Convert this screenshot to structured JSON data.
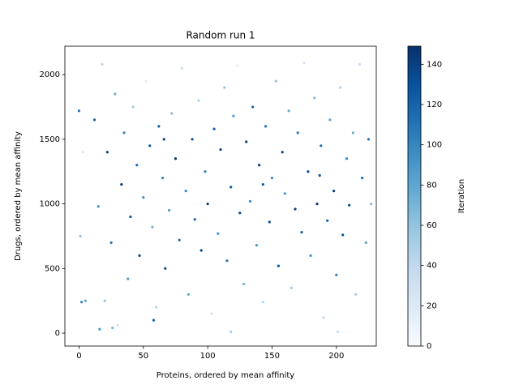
{
  "chart_data": {
    "type": "scatter",
    "title": "Random run 1",
    "x_label": "Proteins, ordered by mean affinity",
    "y_label": "Drugs, ordered by mean affinity",
    "colorbar_label": "Iteration",
    "colormap": "Blues",
    "xlim": [
      -11,
      231
    ],
    "ylim": [
      -100,
      2220
    ],
    "clim": [
      0,
      149
    ],
    "xticks": [
      0,
      50,
      100,
      150,
      200
    ],
    "yticks": [
      0,
      500,
      1000,
      1500,
      2000
    ],
    "cticks": [
      0,
      20,
      40,
      60,
      80,
      100,
      120,
      140
    ],
    "x": [
      12,
      15,
      18,
      20,
      22,
      25,
      28,
      30,
      33,
      35,
      38,
      40,
      42,
      45,
      47,
      50,
      52,
      55,
      57,
      60,
      62,
      65,
      67,
      70,
      72,
      75,
      78,
      80,
      83,
      85,
      88,
      90,
      93,
      95,
      98,
      100,
      103,
      105,
      108,
      110,
      113,
      115,
      118,
      120,
      123,
      125,
      128,
      130,
      133,
      135,
      138,
      140,
      143,
      145,
      148,
      150,
      153,
      155,
      158,
      160,
      163,
      165,
      168,
      170,
      173,
      175,
      178,
      180,
      183,
      185,
      188,
      190,
      193,
      195,
      198,
      200,
      203,
      205,
      208,
      210,
      213,
      215,
      218,
      220,
      223,
      225,
      227,
      0,
      1,
      2,
      5,
      3,
      16,
      26,
      58,
      118,
      201,
      66,
      143,
      187
    ],
    "values": [
      1650,
      980,
      2080,
      250,
      1400,
      700,
      1850,
      60,
      1150,
      1550,
      420,
      900,
      1750,
      1300,
      600,
      1050,
      1950,
      1450,
      820,
      200,
      1600,
      1200,
      500,
      950,
      1700,
      1350,
      720,
      2050,
      1100,
      300,
      1500,
      880,
      1800,
      640,
      1250,
      1000,
      150,
      1580,
      770,
      1420,
      1900,
      560,
      1130,
      1680,
      2070,
      930,
      380,
      1480,
      1020,
      1750,
      680,
      1300,
      240,
      1600,
      860,
      1200,
      1950,
      520,
      1400,
      1080,
      1720,
      350,
      960,
      1550,
      780,
      2090,
      1250,
      600,
      1820,
      1000,
      1450,
      120,
      870,
      1650,
      1100,
      450,
      1900,
      760,
      1350,
      990,
      1550,
      300,
      2080,
      1200,
      700,
      1500,
      1000,
      1720,
      750,
      240,
      250,
      1400,
      30,
      40,
      100,
      10,
      10,
      1500,
      1150,
      1220
    ],
    "color_values": [
      120,
      90,
      40,
      60,
      135,
      110,
      75,
      30,
      142,
      100,
      85,
      128,
      55,
      115,
      140,
      95,
      20,
      130,
      70,
      45,
      125,
      105,
      138,
      88,
      65,
      146,
      112,
      35,
      98,
      80,
      132,
      118,
      50,
      136,
      102,
      144,
      25,
      122,
      92,
      139,
      58,
      108,
      127,
      84,
      15,
      134,
      72,
      141,
      96,
      119,
      87,
      145,
      42,
      113,
      131,
      100,
      62,
      126,
      137,
      90,
      78,
      55,
      143,
      107,
      121,
      28,
      133,
      94,
      68,
      147,
      116,
      38,
      124,
      82,
      139,
      104,
      48,
      129,
      97,
      136,
      74,
      52,
      33,
      118,
      86,
      111,
      64,
      110,
      60,
      100,
      80,
      20,
      90,
      70,
      120,
      50,
      30,
      140,
      125,
      130
    ]
  }
}
